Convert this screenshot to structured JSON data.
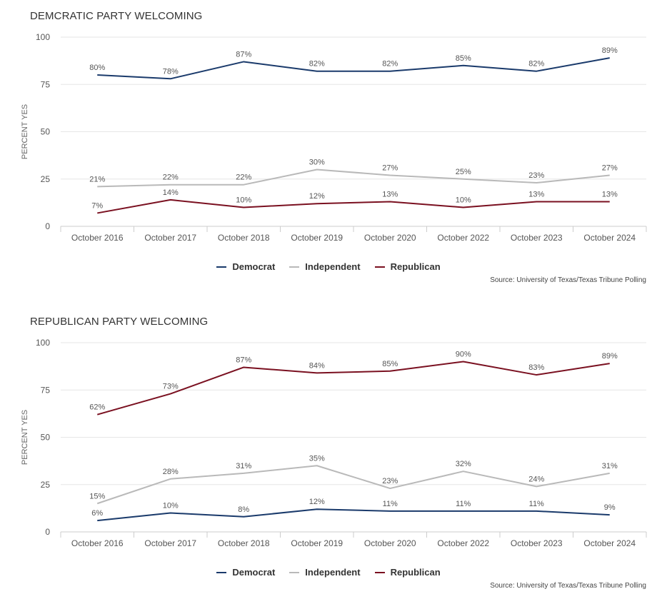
{
  "chart_data": [
    {
      "type": "line",
      "title": "DEMCRATIC PARTY WELCOMING",
      "ylabel": "PERCENT YES",
      "xlabel": "",
      "ylim": [
        0,
        100
      ],
      "yticks": [
        "0",
        "25",
        "50",
        "75",
        "100"
      ],
      "categories": [
        "October 2016",
        "October 2017",
        "October 2018",
        "October 2019",
        "October 2020",
        "October 2022",
        "October 2023",
        "October 2024"
      ],
      "series": [
        {
          "name": "Democrat",
          "color": "#1a3a6b",
          "values": [
            80,
            78,
            87,
            82,
            82,
            85,
            82,
            89
          ],
          "labels": [
            "80%",
            "78%",
            "87%",
            "82%",
            "82%",
            "85%",
            "82%",
            "89%"
          ]
        },
        {
          "name": "Independent",
          "color": "#b9b9b9",
          "values": [
            21,
            22,
            22,
            30,
            27,
            25,
            23,
            27
          ],
          "labels": [
            "21%",
            "22%",
            "22%",
            "30%",
            "27%",
            "25%",
            "23%",
            "27%"
          ]
        },
        {
          "name": "Republican",
          "color": "#7a1020",
          "values": [
            7,
            14,
            10,
            12,
            13,
            10,
            13,
            13
          ],
          "labels": [
            "7%",
            "14%",
            "10%",
            "12%",
            "13%",
            "10%",
            "13%",
            "13%"
          ]
        }
      ],
      "source": "Source: University of Texas/Texas Tribune Polling"
    },
    {
      "type": "line",
      "title": "REPUBLICAN PARTY WELCOMING",
      "ylabel": "PERCENT YES",
      "xlabel": "",
      "ylim": [
        0,
        100
      ],
      "yticks": [
        "0",
        "25",
        "50",
        "75",
        "100"
      ],
      "categories": [
        "October 2016",
        "October 2017",
        "October 2018",
        "October 2019",
        "October 2020",
        "October 2022",
        "October 2023",
        "October 2024"
      ],
      "series": [
        {
          "name": "Democrat",
          "color": "#1a3a6b",
          "values": [
            6,
            10,
            8,
            12,
            11,
            11,
            11,
            9
          ],
          "labels": [
            "6%",
            "10%",
            "8%",
            "12%",
            "11%",
            "11%",
            "11%",
            "9%"
          ]
        },
        {
          "name": "Independent",
          "color": "#b9b9b9",
          "values": [
            15,
            28,
            31,
            35,
            23,
            32,
            24,
            31
          ],
          "labels": [
            "15%",
            "28%",
            "31%",
            "35%",
            "23%",
            "32%",
            "24%",
            "31%"
          ]
        },
        {
          "name": "Republican",
          "color": "#7a1020",
          "values": [
            62,
            73,
            87,
            84,
            85,
            90,
            83,
            89
          ],
          "labels": [
            "62%",
            "73%",
            "87%",
            "84%",
            "85%",
            "90%",
            "83%",
            "89%"
          ]
        }
      ],
      "source": "Source: University of Texas/Texas Tribune Polling"
    }
  ]
}
